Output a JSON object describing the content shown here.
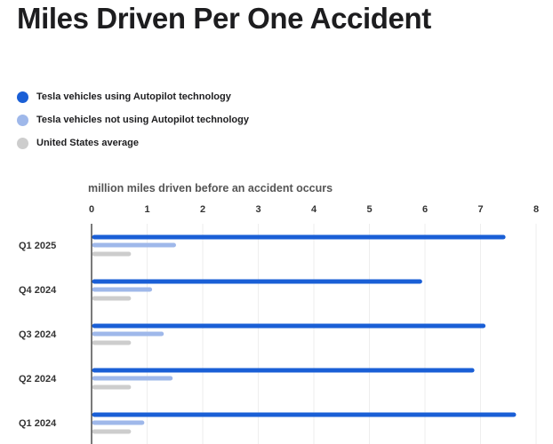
{
  "title": "Miles Driven Per One Accident",
  "legend": [
    {
      "label": "Tesla vehicles using Autopilot technology",
      "color": "#1a5fd6"
    },
    {
      "label": "Tesla vehicles not using Autopilot technology",
      "color": "#9fb8ea"
    },
    {
      "label": "United States average",
      "color": "#cdcdcd"
    }
  ],
  "chart_data": {
    "type": "bar",
    "orientation": "horizontal",
    "axis_title": "million miles driven before an accident occurs",
    "xlim": [
      0,
      8
    ],
    "ticks": [
      "0",
      "1",
      "2",
      "3",
      "4",
      "5",
      "6",
      "7",
      "8"
    ],
    "grid": true,
    "categories": [
      "Q1 2025",
      "Q4 2024",
      "Q3 2024",
      "Q2 2024",
      "Q1 2024"
    ],
    "series": [
      {
        "name": "Tesla vehicles using Autopilot technology",
        "color": "#1a5fd6",
        "values": [
          7.44,
          5.94,
          7.08,
          6.88,
          7.63
        ]
      },
      {
        "name": "Tesla vehicles not using Autopilot technology",
        "color": "#9fb8ea",
        "values": [
          1.51,
          1.08,
          1.29,
          1.45,
          0.94
        ]
      },
      {
        "name": "United States average",
        "color": "#cdcdcd",
        "values": [
          0.7,
          0.7,
          0.7,
          0.7,
          0.7
        ]
      }
    ]
  }
}
